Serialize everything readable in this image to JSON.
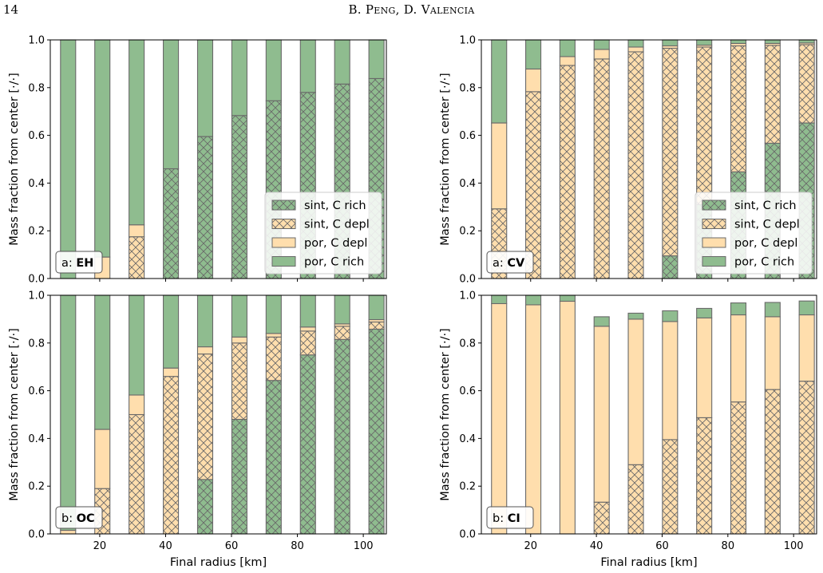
{
  "header": {
    "page_number": "14",
    "running_head": "B. Peng, D. Valencia"
  },
  "colors": {
    "green": "#8fbc8f",
    "orange": "#ffdead",
    "edge": "#696969"
  },
  "chart_data": [
    {
      "type": "bar",
      "stacked": true,
      "panel_tag": "a:",
      "panel_name": "EH",
      "xlabel": "",
      "ylabel": "Mass fraction from center [·/·]",
      "xlim": [
        5,
        107
      ],
      "ylim": [
        0,
        1
      ],
      "xticks": [
        20,
        40,
        60,
        80,
        100
      ],
      "yticks": [
        0.0,
        0.2,
        0.4,
        0.6,
        0.8,
        1.0
      ],
      "legend": {
        "placement": "lower-right",
        "entries": [
          {
            "label": "sint, C rich",
            "color": "green",
            "hatch": true
          },
          {
            "label": "sint, C depl",
            "color": "orange",
            "hatch": true
          },
          {
            "label": "por, C depl",
            "color": "orange",
            "hatch": false
          },
          {
            "label": "por, C rich",
            "color": "green",
            "hatch": false
          }
        ]
      },
      "x": [
        10.4,
        20.8,
        31.2,
        41.6,
        52.0,
        62.4,
        72.8,
        83.2,
        93.6,
        104.0
      ],
      "series": [
        {
          "legend_index": 0,
          "values": [
            0,
            0,
            0,
            0.46,
            0.595,
            0.683,
            0.745,
            0.78,
            0.815,
            0.838
          ]
        },
        {
          "legend_index": 1,
          "values": [
            0,
            0,
            0.175,
            0,
            0,
            0,
            0,
            0,
            0,
            0
          ]
        },
        {
          "legend_index": 2,
          "values": [
            0,
            0.09,
            0.05,
            0,
            0,
            0,
            0,
            0,
            0,
            0
          ]
        },
        {
          "legend_index": 3,
          "values": [
            1.0,
            0.91,
            0.775,
            0.54,
            0.405,
            0.317,
            0.255,
            0.22,
            0.185,
            0.162
          ]
        }
      ]
    },
    {
      "type": "bar",
      "stacked": true,
      "panel_tag": "a:",
      "panel_name": "CV",
      "xlabel": "",
      "ylabel": "Mass fraction from center [·/·]",
      "xlim": [
        5,
        107
      ],
      "ylim": [
        0,
        1
      ],
      "xticks": [
        20,
        40,
        60,
        80,
        100
      ],
      "yticks": [
        0.0,
        0.2,
        0.4,
        0.6,
        0.8,
        1.0
      ],
      "legend": {
        "placement": "lower-right",
        "entries": [
          {
            "label": "sint, C rich",
            "color": "green",
            "hatch": true
          },
          {
            "label": "sint, C depl",
            "color": "orange",
            "hatch": true
          },
          {
            "label": "por, C depl",
            "color": "orange",
            "hatch": false
          },
          {
            "label": "por, C rich",
            "color": "green",
            "hatch": false
          }
        ]
      },
      "x": [
        10.4,
        20.8,
        31.2,
        41.6,
        52.0,
        62.4,
        72.8,
        83.2,
        93.6,
        104.0
      ],
      "series": [
        {
          "legend_index": 0,
          "values": [
            0,
            0,
            0,
            0,
            0,
            0.095,
            0.31,
            0.447,
            0.567,
            0.652
          ]
        },
        {
          "legend_index": 1,
          "values": [
            0.292,
            0.783,
            0.893,
            0.92,
            0.95,
            0.87,
            0.66,
            0.528,
            0.41,
            0.328
          ]
        },
        {
          "legend_index": 2,
          "values": [
            0.36,
            0.095,
            0.037,
            0.04,
            0.02,
            0.01,
            0.008,
            0.01,
            0.008,
            0.007
          ]
        },
        {
          "legend_index": 3,
          "values": [
            0.348,
            0.122,
            0.07,
            0.04,
            0.03,
            0.025,
            0.022,
            0.015,
            0.015,
            0.013
          ]
        }
      ]
    },
    {
      "type": "bar",
      "stacked": true,
      "panel_tag": "b:",
      "panel_name": "OC",
      "xlabel": "Final radius [km]",
      "ylabel": "Mass fraction from center [·/·]",
      "xlim": [
        5,
        107
      ],
      "ylim": [
        0,
        1
      ],
      "xticks": [
        20,
        40,
        60,
        80,
        100
      ],
      "yticks": [
        0.0,
        0.2,
        0.4,
        0.6,
        0.8,
        1.0
      ],
      "legend": null,
      "x": [
        10.4,
        20.8,
        31.2,
        41.6,
        52.0,
        62.4,
        72.8,
        83.2,
        93.6,
        104.0
      ],
      "series": [
        {
          "legend_index": 0,
          "values": [
            0,
            0,
            0,
            0,
            0.228,
            0.48,
            0.643,
            0.75,
            0.815,
            0.858
          ]
        },
        {
          "legend_index": 1,
          "values": [
            0,
            0.19,
            0.5,
            0.66,
            0.526,
            0.32,
            0.182,
            0.1,
            0.055,
            0.03
          ]
        },
        {
          "legend_index": 2,
          "values": [
            0.015,
            0.248,
            0.082,
            0.035,
            0.03,
            0.025,
            0.015,
            0.017,
            0.01,
            0.01
          ]
        },
        {
          "legend_index": 3,
          "values": [
            0.985,
            0.562,
            0.418,
            0.305,
            0.216,
            0.175,
            0.16,
            0.133,
            0.12,
            0.102
          ]
        }
      ]
    },
    {
      "type": "bar",
      "stacked": true,
      "panel_tag": "b:",
      "panel_name": "CI",
      "xlabel": "Final radius [km]",
      "ylabel": "Mass fraction from center [·/·]",
      "xlim": [
        5,
        107
      ],
      "ylim": [
        0,
        1
      ],
      "xticks": [
        20,
        40,
        60,
        80,
        100
      ],
      "yticks": [
        0.0,
        0.2,
        0.4,
        0.6,
        0.8,
        1.0
      ],
      "legend": null,
      "x": [
        10.4,
        20.8,
        31.2,
        41.6,
        52.0,
        62.4,
        72.8,
        83.2,
        93.6,
        104.0
      ],
      "series": [
        {
          "legend_index": 0,
          "values": [
            0,
            0,
            0,
            0,
            0,
            0,
            0,
            0,
            0,
            0
          ]
        },
        {
          "legend_index": 1,
          "values": [
            0,
            0,
            0,
            0.133,
            0.29,
            0.395,
            0.487,
            0.553,
            0.605,
            0.64
          ]
        },
        {
          "legend_index": 2,
          "values": [
            0.965,
            0.96,
            0.975,
            0.737,
            0.61,
            0.495,
            0.418,
            0.365,
            0.305,
            0.278
          ]
        },
        {
          "legend_index": 3,
          "values": [
            0.035,
            0.04,
            0.025,
            0.04,
            0.025,
            0.045,
            0.04,
            0.05,
            0.06,
            0.058
          ]
        }
      ]
    }
  ]
}
